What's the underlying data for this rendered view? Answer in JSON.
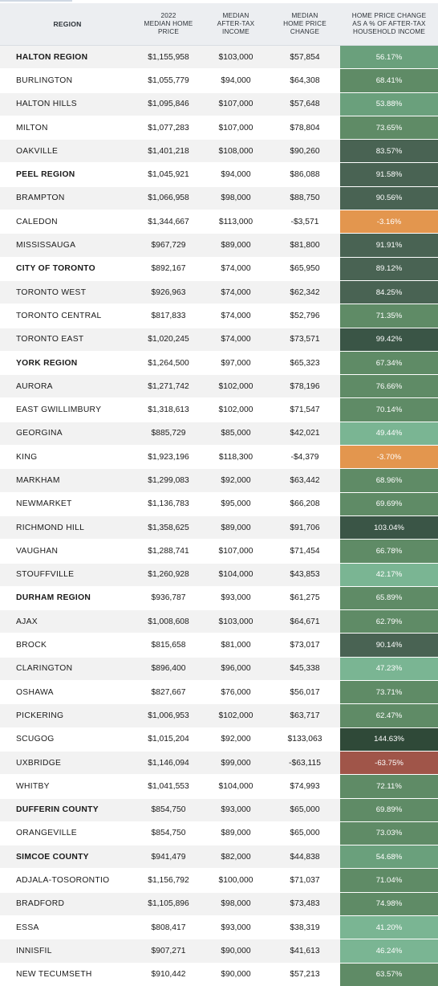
{
  "header": {
    "region": "REGION",
    "price": "2022\nMEDIAN HOME\nPRICE",
    "income": "MEDIAN\nAFTER-TAX\nINCOME",
    "change": "MEDIAN\nHOME PRICE\nCHANGE",
    "pct": "HOME PRICE CHANGE\nAS A % OF AFTER-TAX\nHOUSEHOLD INCOME"
  },
  "colors": {
    "header_bg": "#eceef1",
    "row_grey": "#f2f2f2",
    "row_white": "#ffffff",
    "negative_orange": "#e3964e",
    "negative_red": "#a05549",
    "green_light": "#7ab593",
    "green_mid_light": "#6aa07c",
    "green_mid": "#5f8b66",
    "green_dark": "#496353",
    "green_darker": "#3a5546",
    "green_darkest": "#2f4938"
  },
  "rows": [
    {
      "region": "HALTON REGION",
      "bold": true,
      "price": "$1,155,958",
      "income": "$103,000",
      "change": "$57,854",
      "pct": "56.17%",
      "pct_value": 56.17
    },
    {
      "region": "BURLINGTON",
      "bold": false,
      "price": "$1,055,779",
      "income": "$94,000",
      "change": "$64,308",
      "pct": "68.41%",
      "pct_value": 68.41
    },
    {
      "region": "HALTON HILLS",
      "bold": false,
      "price": "$1,095,846",
      "income": "$107,000",
      "change": "$57,648",
      "pct": "53.88%",
      "pct_value": 53.88
    },
    {
      "region": "MILTON",
      "bold": false,
      "price": "$1,077,283",
      "income": "$107,000",
      "change": "$78,804",
      "pct": "73.65%",
      "pct_value": 73.65
    },
    {
      "region": "OAKVILLE",
      "bold": false,
      "price": "$1,401,218",
      "income": "$108,000",
      "change": "$90,260",
      "pct": "83.57%",
      "pct_value": 83.57
    },
    {
      "region": "PEEL REGION",
      "bold": true,
      "price": "$1,045,921",
      "income": "$94,000",
      "change": "$86,088",
      "pct": "91.58%",
      "pct_value": 91.58
    },
    {
      "region": "BRAMPTON",
      "bold": false,
      "price": "$1,066,958",
      "income": "$98,000",
      "change": "$88,750",
      "pct": "90.56%",
      "pct_value": 90.56
    },
    {
      "region": "CALEDON",
      "bold": false,
      "price": "$1,344,667",
      "income": "$113,000",
      "change": "-$3,571",
      "pct": "-3.16%",
      "pct_value": -3.16
    },
    {
      "region": "MISSISSAUGA",
      "bold": false,
      "price": "$967,729",
      "income": "$89,000",
      "change": "$81,800",
      "pct": "91.91%",
      "pct_value": 91.91
    },
    {
      "region": "CITY OF TORONTO",
      "bold": true,
      "price": "$892,167",
      "income": "$74,000",
      "change": "$65,950",
      "pct": "89.12%",
      "pct_value": 89.12
    },
    {
      "region": "TORONTO WEST",
      "bold": false,
      "price": "$926,963",
      "income": "$74,000",
      "change": "$62,342",
      "pct": "84.25%",
      "pct_value": 84.25
    },
    {
      "region": "TORONTO CENTRAL",
      "bold": false,
      "price": "$817,833",
      "income": "$74,000",
      "change": "$52,796",
      "pct": "71.35%",
      "pct_value": 71.35
    },
    {
      "region": "TORONTO EAST",
      "bold": false,
      "price": "$1,020,245",
      "income": "$74,000",
      "change": "$73,571",
      "pct": "99.42%",
      "pct_value": 99.42
    },
    {
      "region": "YORK REGION",
      "bold": true,
      "price": "$1,264,500",
      "income": "$97,000",
      "change": "$65,323",
      "pct": "67.34%",
      "pct_value": 67.34
    },
    {
      "region": "AURORA",
      "bold": false,
      "price": "$1,271,742",
      "income": "$102,000",
      "change": "$78,196",
      "pct": "76.66%",
      "pct_value": 76.66
    },
    {
      "region": "EAST GWILLIMBURY",
      "bold": false,
      "price": "$1,318,613",
      "income": "$102,000",
      "change": "$71,547",
      "pct": "70.14%",
      "pct_value": 70.14
    },
    {
      "region": "GEORGINA",
      "bold": false,
      "price": "$885,729",
      "income": "$85,000",
      "change": "$42,021",
      "pct": "49.44%",
      "pct_value": 49.44
    },
    {
      "region": "KING",
      "bold": false,
      "price": "$1,923,196",
      "income": "$118,300",
      "change": "-$4,379",
      "pct": "-3.70%",
      "pct_value": -3.7
    },
    {
      "region": "MARKHAM",
      "bold": false,
      "price": "$1,299,083",
      "income": "$92,000",
      "change": "$63,442",
      "pct": "68.96%",
      "pct_value": 68.96
    },
    {
      "region": "NEWMARKET",
      "bold": false,
      "price": "$1,136,783",
      "income": "$95,000",
      "change": "$66,208",
      "pct": "69.69%",
      "pct_value": 69.69
    },
    {
      "region": "RICHMOND HILL",
      "bold": false,
      "price": "$1,358,625",
      "income": "$89,000",
      "change": "$91,706",
      "pct": "103.04%",
      "pct_value": 103.04
    },
    {
      "region": "VAUGHAN",
      "bold": false,
      "price": "$1,288,741",
      "income": "$107,000",
      "change": "$71,454",
      "pct": "66.78%",
      "pct_value": 66.78
    },
    {
      "region": "STOUFFVILLE",
      "bold": false,
      "price": "$1,260,928",
      "income": "$104,000",
      "change": "$43,853",
      "pct": "42.17%",
      "pct_value": 42.17
    },
    {
      "region": "DURHAM REGION",
      "bold": true,
      "price": "$936,787",
      "income": "$93,000",
      "change": "$61,275",
      "pct": "65.89%",
      "pct_value": 65.89
    },
    {
      "region": "AJAX",
      "bold": false,
      "price": "$1,008,608",
      "income": "$103,000",
      "change": "$64,671",
      "pct": "62.79%",
      "pct_value": 62.79
    },
    {
      "region": "BROCK",
      "bold": false,
      "price": "$815,658",
      "income": "$81,000",
      "change": "$73,017",
      "pct": "90.14%",
      "pct_value": 90.14
    },
    {
      "region": "CLARINGTON",
      "bold": false,
      "price": "$896,400",
      "income": "$96,000",
      "change": "$45,338",
      "pct": "47.23%",
      "pct_value": 47.23
    },
    {
      "region": "OSHAWA",
      "bold": false,
      "price": "$827,667",
      "income": "$76,000",
      "change": "$56,017",
      "pct": "73.71%",
      "pct_value": 73.71
    },
    {
      "region": "PICKERING",
      "bold": false,
      "price": "$1,006,953",
      "income": "$102,000",
      "change": "$63,717",
      "pct": "62.47%",
      "pct_value": 62.47
    },
    {
      "region": "SCUGOG",
      "bold": false,
      "price": "$1,015,204",
      "income": "$92,000",
      "change": "$133,063",
      "pct": "144.63%",
      "pct_value": 144.63
    },
    {
      "region": "UXBRIDGE",
      "bold": false,
      "price": "$1,146,094",
      "income": "$99,000",
      "change": "-$63,115",
      "pct": "-63.75%",
      "pct_value": -63.75
    },
    {
      "region": "WHITBY",
      "bold": false,
      "price": "$1,041,553",
      "income": "$104,000",
      "change": "$74,993",
      "pct": "72.11%",
      "pct_value": 72.11
    },
    {
      "region": "DUFFERIN COUNTY",
      "bold": true,
      "price": "$854,750",
      "income": "$93,000",
      "change": "$65,000",
      "pct": "69.89%",
      "pct_value": 69.89
    },
    {
      "region": "ORANGEVILLE",
      "bold": false,
      "price": "$854,750",
      "income": "$89,000",
      "change": "$65,000",
      "pct": "73.03%",
      "pct_value": 73.03
    },
    {
      "region": "SIMCOE COUNTY",
      "bold": true,
      "price": "$941,479",
      "income": "$82,000",
      "change": "$44,838",
      "pct": "54.68%",
      "pct_value": 54.68
    },
    {
      "region": "ADJALA-TOSORONTIO",
      "bold": false,
      "price": "$1,156,792",
      "income": "$100,000",
      "change": "$71,037",
      "pct": "71.04%",
      "pct_value": 71.04
    },
    {
      "region": "BRADFORD",
      "bold": false,
      "price": "$1,105,896",
      "income": "$98,000",
      "change": "$73,483",
      "pct": "74.98%",
      "pct_value": 74.98
    },
    {
      "region": "ESSA",
      "bold": false,
      "price": "$808,417",
      "income": "$93,000",
      "change": "$38,319",
      "pct": "41.20%",
      "pct_value": 41.2
    },
    {
      "region": "INNISFIL",
      "bold": false,
      "price": "$907,271",
      "income": "$90,000",
      "change": "$41,613",
      "pct": "46.24%",
      "pct_value": 46.24
    },
    {
      "region": "NEW TECUMSETH",
      "bold": false,
      "price": "$910,442",
      "income": "$90,000",
      "change": "$57,213",
      "pct": "63.57%",
      "pct_value": 63.57
    }
  ]
}
